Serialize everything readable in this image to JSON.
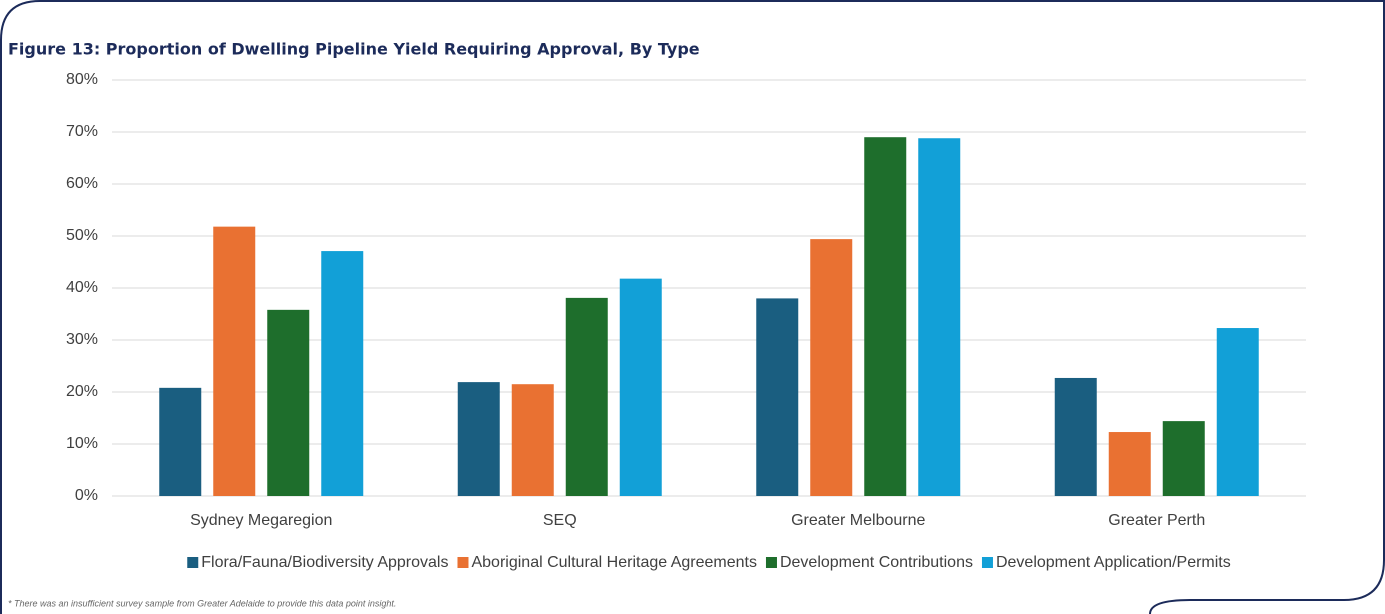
{
  "chart_data": {
    "type": "bar",
    "title": "Figure 13: Proportion of Dwelling Pipeline Yield Requiring Approval, By Type",
    "footnote": "* There was an insufficient survey sample from Greater Adelaide to provide this data point insight.",
    "categories": [
      "Sydney Megaregion",
      "SEQ",
      "Greater Melbourne",
      "Greater Perth"
    ],
    "series": [
      {
        "name": "Flora/Fauna/Biodiversity Approvals",
        "color": "#1a5e80",
        "values": [
          20.8,
          21.9,
          38,
          22.7
        ]
      },
      {
        "name": "Aboriginal Cultural Heritage Agreements",
        "color": "#e97132",
        "values": [
          51.8,
          21.5,
          49.4,
          12.3
        ]
      },
      {
        "name": "Development Contributions",
        "color": "#1e6e2c",
        "values": [
          35.8,
          38.1,
          69,
          14.4
        ]
      },
      {
        "name": "Development Application/Permits",
        "color": "#12a0d7",
        "values": [
          47.1,
          41.8,
          68.8,
          32.3
        ]
      }
    ],
    "ylim": [
      0,
      80
    ],
    "yticks": [
      {
        "value": 0,
        "label": "0%"
      },
      {
        "value": 10,
        "label": "10%"
      },
      {
        "value": 20,
        "label": "20%"
      },
      {
        "value": 30,
        "label": "30%"
      },
      {
        "value": 40,
        "label": "40%"
      },
      {
        "value": 50,
        "label": "50%"
      },
      {
        "value": 60,
        "label": "60%"
      },
      {
        "value": 70,
        "label": "70%"
      },
      {
        "value": 80,
        "label": "80%"
      }
    ],
    "grid": true,
    "legend": "bottom"
  }
}
